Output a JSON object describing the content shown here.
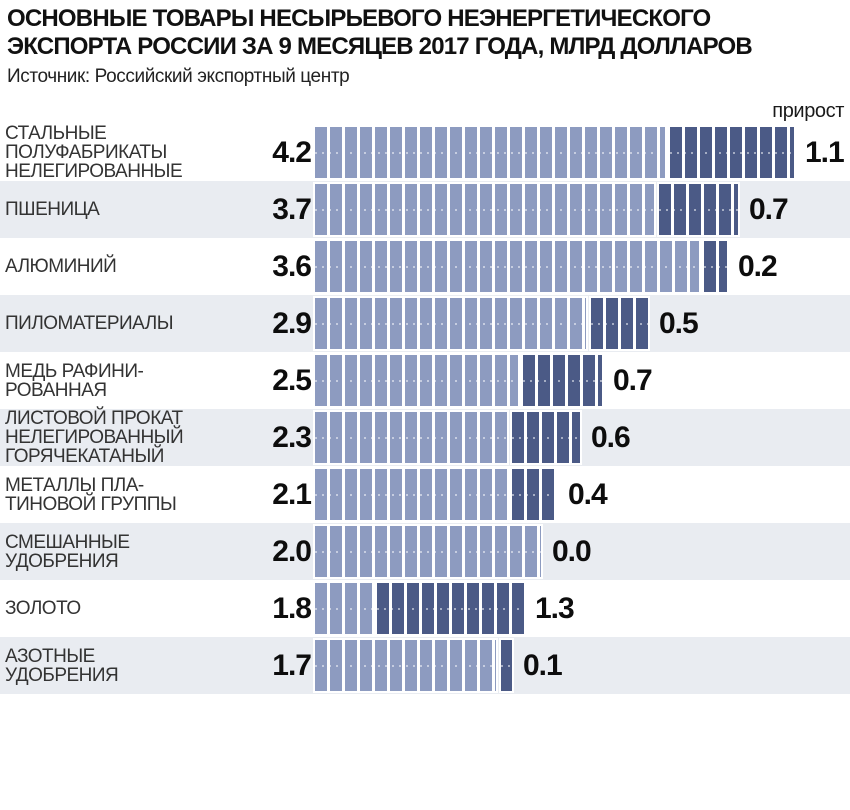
{
  "header": {
    "title_line1": "ОСНОВНЫЕ ТОВАРЫ НЕСЫРЬЕВОГО НЕЭНЕРГЕТИЧЕСКОГО",
    "title_line2": "ЭКСПОРТА РОССИИ ЗА 9 МЕСЯЦЕВ 2017 ГОДА, МЛРД ДОЛЛАРОВ",
    "source": "Источник: Российский экспортный центр"
  },
  "chart_data": {
    "type": "bar",
    "orientation": "horizontal",
    "title": "ОСНОВНЫЕ ТОВАРЫ НЕСЫРЬЕВОГО НЕЭНЕРГЕТИЧЕСКОГО ЭКСПОРТА РОССИИ ЗА 9 МЕСЯЦЕВ 2017 ГОДА, МЛРД ДОЛЛАРОВ",
    "unit": "млрд долларов",
    "source": "Источник: Российский экспортный центр",
    "growth_label": "прирост",
    "value_format": "0.0",
    "legend_position": "top-right",
    "grid": false,
    "items": [
      {
        "label": "СТАЛЬНЫЕ ПОЛУФАБРИКАТЫ НЕЛЕГИРОВАННЫЕ",
        "label_lines": [
          "СТАЛЬНЫЕ",
          "ПОЛУФАБРИКАТЫ",
          "НЕЛЕГИРОВАННЫЕ"
        ],
        "value": 4.2,
        "growth": 1.1
      },
      {
        "label": "ПШЕНИЦА",
        "label_lines": [
          "ПШЕНИЦА"
        ],
        "value": 3.7,
        "growth": 0.7
      },
      {
        "label": "АЛЮМИНИЙ",
        "label_lines": [
          "АЛЮМИНИЙ"
        ],
        "value": 3.6,
        "growth": 0.2
      },
      {
        "label": "ПИЛОМАТЕРИАЛЫ",
        "label_lines": [
          "ПИЛОМАТЕРИАЛЫ"
        ],
        "value": 2.9,
        "growth": 0.5
      },
      {
        "label": "МЕДЬ РАФИНИРОВАННАЯ",
        "label_lines": [
          "МЕДЬ РАФИНИ-",
          "РОВАННАЯ"
        ],
        "value": 2.5,
        "growth": 0.7
      },
      {
        "label": "ЛИСТОВОЙ ПРОКАТ НЕЛЕГИРОВАННЫЙ ГОРЯЧЕКАТАНЫЙ",
        "label_lines": [
          "ЛИСТОВОЙ ПРОКАТ",
          "НЕЛЕГИРОВАННЫЙ",
          "ГОРЯЧЕКАТАНЫЙ"
        ],
        "value": 2.3,
        "growth": 0.6
      },
      {
        "label": "МЕТАЛЛЫ ПЛАТИНОВОЙ ГРУППЫ",
        "label_lines": [
          "МЕТАЛЛЫ ПЛА-",
          "ТИНОВОЙ ГРУППЫ"
        ],
        "value": 2.1,
        "growth": 0.4
      },
      {
        "label": "СМЕШАННЫЕ УДОБРЕНИЯ",
        "label_lines": [
          "СМЕШАННЫЕ",
          "УДОБРЕНИЯ"
        ],
        "value": 2.0,
        "growth": 0.0
      },
      {
        "label": "ЗОЛОТО",
        "label_lines": [
          "ЗОЛОТО"
        ],
        "value": 1.8,
        "growth": 1.3
      },
      {
        "label": "АЗОТНЫЕ УДОБРЕНИЯ",
        "label_lines": [
          "АЗОТНЫЕ",
          "УДОБРЕНИЯ"
        ],
        "value": 1.7,
        "growth": 0.1
      }
    ],
    "colors": {
      "bar_base": "#8d9bc0",
      "bar_growth": "#4b5a86",
      "row_band": "#e9ecf1",
      "separator": "#ffffff",
      "text": "#111111"
    }
  }
}
